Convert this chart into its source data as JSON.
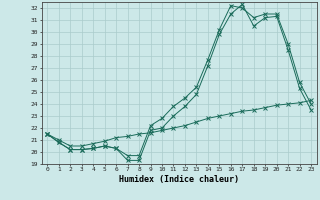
{
  "xlabel": "Humidex (Indice chaleur)",
  "background_color": "#cce8e8",
  "grid_color": "#aacccc",
  "line_color": "#1a6b5a",
  "xlim": [
    -0.5,
    23.5
  ],
  "ylim": [
    19,
    32.5
  ],
  "yticks": [
    19,
    20,
    21,
    22,
    23,
    24,
    25,
    26,
    27,
    28,
    29,
    30,
    31,
    32
  ],
  "xticks": [
    0,
    1,
    2,
    3,
    4,
    5,
    6,
    7,
    8,
    9,
    10,
    11,
    12,
    13,
    14,
    15,
    16,
    17,
    18,
    19,
    20,
    21,
    22,
    23
  ],
  "x": [
    0,
    1,
    2,
    3,
    4,
    5,
    6,
    7,
    8,
    9,
    10,
    11,
    12,
    13,
    14,
    15,
    16,
    17,
    18,
    19,
    20,
    21,
    22,
    23
  ],
  "line1": [
    21.5,
    20.8,
    20.2,
    20.2,
    20.3,
    20.5,
    20.3,
    19.3,
    19.3,
    21.8,
    22.0,
    23.0,
    23.8,
    24.8,
    27.2,
    29.8,
    31.5,
    32.3,
    30.5,
    31.2,
    31.3,
    28.5,
    25.3,
    23.5
  ],
  "line2": [
    21.5,
    20.8,
    20.2,
    20.2,
    20.3,
    20.5,
    20.3,
    19.7,
    19.7,
    22.2,
    22.8,
    23.8,
    24.5,
    25.4,
    27.7,
    30.2,
    32.2,
    32.0,
    31.2,
    31.5,
    31.5,
    29.0,
    25.8,
    24.0
  ],
  "line3": [
    21.5,
    21.0,
    20.5,
    20.5,
    20.7,
    20.9,
    21.2,
    21.3,
    21.5,
    21.6,
    21.8,
    22.0,
    22.2,
    22.5,
    22.8,
    23.0,
    23.2,
    23.4,
    23.5,
    23.7,
    23.9,
    24.0,
    24.1,
    24.3
  ]
}
